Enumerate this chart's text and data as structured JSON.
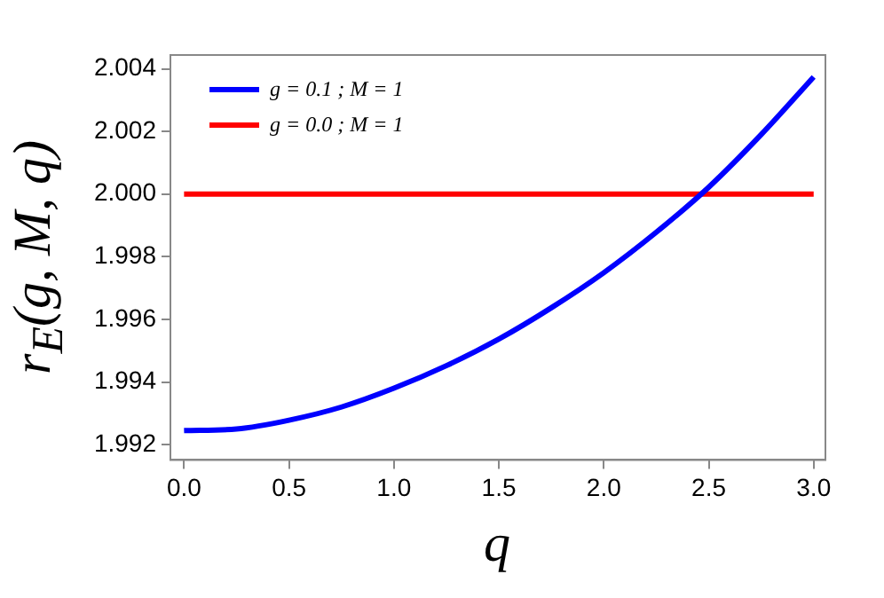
{
  "chart_data": {
    "type": "line",
    "xlabel": "q",
    "ylabel": "r$_{E}$(g, M, q)",
    "xlim": [
      -0.065,
      3.056
    ],
    "ylim": [
      1.99151,
      2.00444
    ],
    "xticks": [
      {
        "value": 0,
        "label": "0.0"
      },
      {
        "value": 0.5,
        "label": "0.5"
      },
      {
        "value": 1,
        "label": "1.0"
      },
      {
        "value": 1.5,
        "label": "1.5"
      },
      {
        "value": 2,
        "label": "2.0"
      },
      {
        "value": 2.5,
        "label": "2.5"
      },
      {
        "value": 3,
        "label": "3.0"
      }
    ],
    "yticks": [
      {
        "value": 1.992,
        "label": "1.992"
      },
      {
        "value": 1.994,
        "label": "1.994"
      },
      {
        "value": 1.996,
        "label": "1.996"
      },
      {
        "value": 1.998,
        "label": "1.998"
      },
      {
        "value": 2,
        "label": "2.000"
      },
      {
        "value": 2.002,
        "label": "2.002"
      },
      {
        "value": 2.004,
        "label": "2.004"
      }
    ],
    "legend": "top left",
    "grid": false,
    "marker": "none",
    "line_style": "solid",
    "series": [
      {
        "name": "g = 0.1 ; M = 1",
        "color": "#0000ff",
        "x": [
          0,
          0.25,
          0.5,
          0.75,
          1,
          1.25,
          1.5,
          1.75,
          2,
          2.25,
          2.5,
          2.75,
          3
        ],
        "values": [
          1.99245,
          1.9925,
          1.99278,
          1.9932,
          1.9938,
          1.99452,
          1.99537,
          1.99637,
          1.99749,
          1.99878,
          2.00022,
          2.0019,
          2.00374
        ]
      },
      {
        "name": "g = 0.0 ; M = 1",
        "color": "#ff0000",
        "x": [
          0,
          3
        ],
        "values": [
          2,
          2
        ]
      }
    ]
  }
}
